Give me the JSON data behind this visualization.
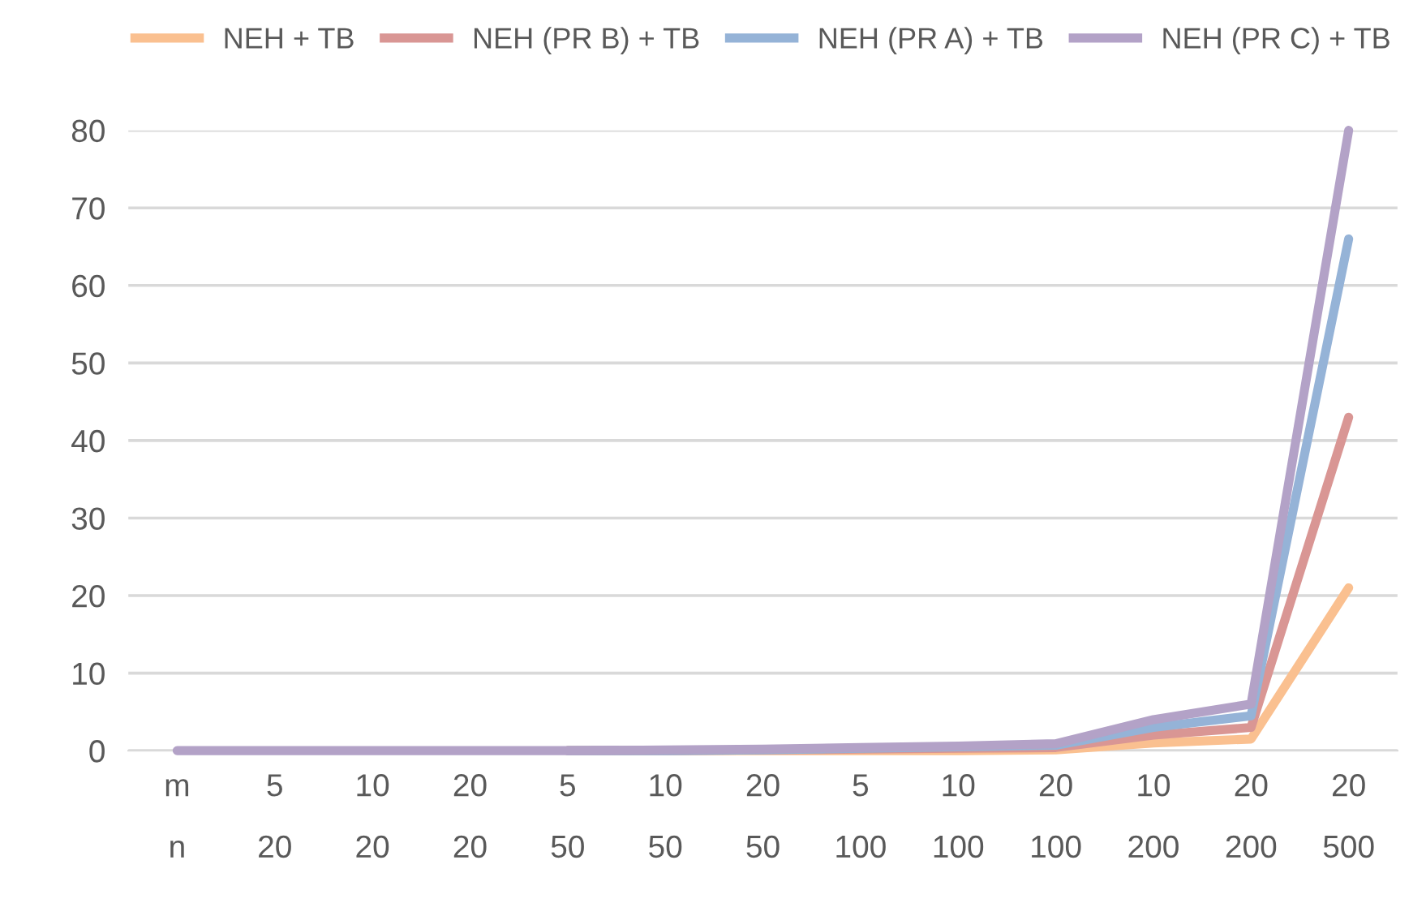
{
  "chart_data": {
    "type": "line",
    "categories": [
      "m\nn",
      "5\n20",
      "10\n20",
      "20\n20",
      "5\n50",
      "10\n50",
      "20\n50",
      "5\n100",
      "10\n100",
      "20\n100",
      "10\n200",
      "20\n200",
      "20\n500"
    ],
    "series": [
      {
        "name": "NEH + TB",
        "color": "#fac090",
        "values": [
          null,
          null,
          null,
          null,
          0,
          0,
          0,
          0,
          0,
          0.1,
          1,
          1.5,
          21
        ]
      },
      {
        "name": "NEH (PR B) + TB",
        "color": "#d99694",
        "values": [
          null,
          null,
          null,
          null,
          0,
          0,
          0.1,
          0.2,
          0.3,
          0.4,
          2,
          3,
          43
        ]
      },
      {
        "name": "NEH (PR A) + TB",
        "color": "#95b3d7",
        "values": [
          null,
          null,
          null,
          null,
          0,
          0,
          0.1,
          0.3,
          0.5,
          0.7,
          3,
          4.5,
          66
        ]
      },
      {
        "name": "NEH (PR C) + TB",
        "color": "#b3a2c7",
        "values": [
          0,
          0,
          0,
          0,
          0,
          0.1,
          0.2,
          0.4,
          0.6,
          0.9,
          4,
          6,
          80
        ]
      }
    ],
    "ylim": [
      0,
      80
    ],
    "yticks": [
      0,
      10,
      20,
      30,
      40,
      50,
      60,
      70,
      80
    ],
    "grid": "y",
    "legend": "top",
    "marker": "none",
    "line_style": "solid"
  }
}
